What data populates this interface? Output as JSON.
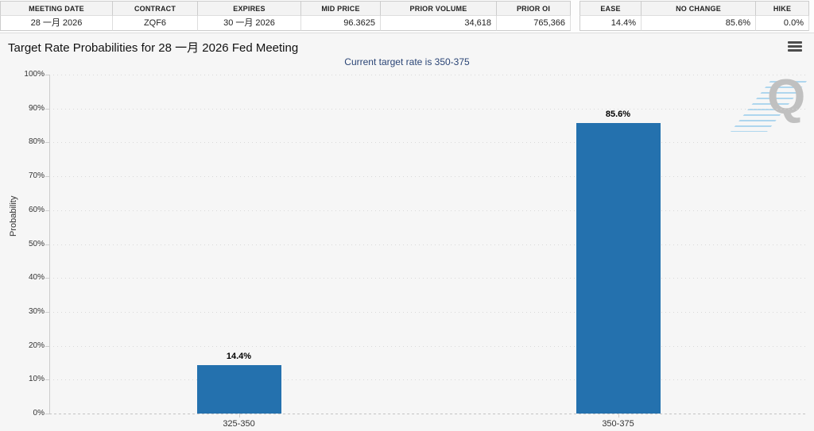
{
  "futures_table": {
    "headers": [
      "MEETING DATE",
      "CONTRACT",
      "EXPIRES",
      "MID PRICE",
      "PRIOR VOLUME",
      "PRIOR OI"
    ],
    "values": [
      "28 一月 2026",
      "ZQF6",
      "30 一月 2026",
      "96.3625",
      "34,618",
      "765,366"
    ]
  },
  "probability_table": {
    "headers": [
      "EASE",
      "NO CHANGE",
      "HIKE"
    ],
    "values": [
      "14.4%",
      "85.6%",
      "0.0%"
    ]
  },
  "chart": {
    "menu_icon": "hamburger-icon",
    "watermark_letter": "Q",
    "colors": {
      "bar": "#2471ae",
      "subtitle_text": "#2b4576",
      "chart_background": "#f6f6f6",
      "grid": "#d9d9d9",
      "axis": "#cccccc",
      "watermark_gray": "#c0c0c0",
      "watermark_blue": "#7fc0e8"
    }
  },
  "chart_data": {
    "type": "bar",
    "title": "Target Rate Probabilities for 28 一月 2026 Fed Meeting",
    "subtitle": "Current target rate is 350-375",
    "categories": [
      "325-350",
      "350-375"
    ],
    "values": [
      14.4,
      85.6
    ],
    "value_labels": [
      "14.4%",
      "85.6%"
    ],
    "xlabel": "",
    "ylabel": "Probability",
    "ylim": [
      0,
      100
    ],
    "yticks": [
      0,
      10,
      20,
      30,
      40,
      50,
      60,
      70,
      80,
      90,
      100
    ],
    "ytick_suffix": "%",
    "grid": "dotted-horizontal",
    "legend": "none",
    "bar_color": "#2471ae"
  }
}
